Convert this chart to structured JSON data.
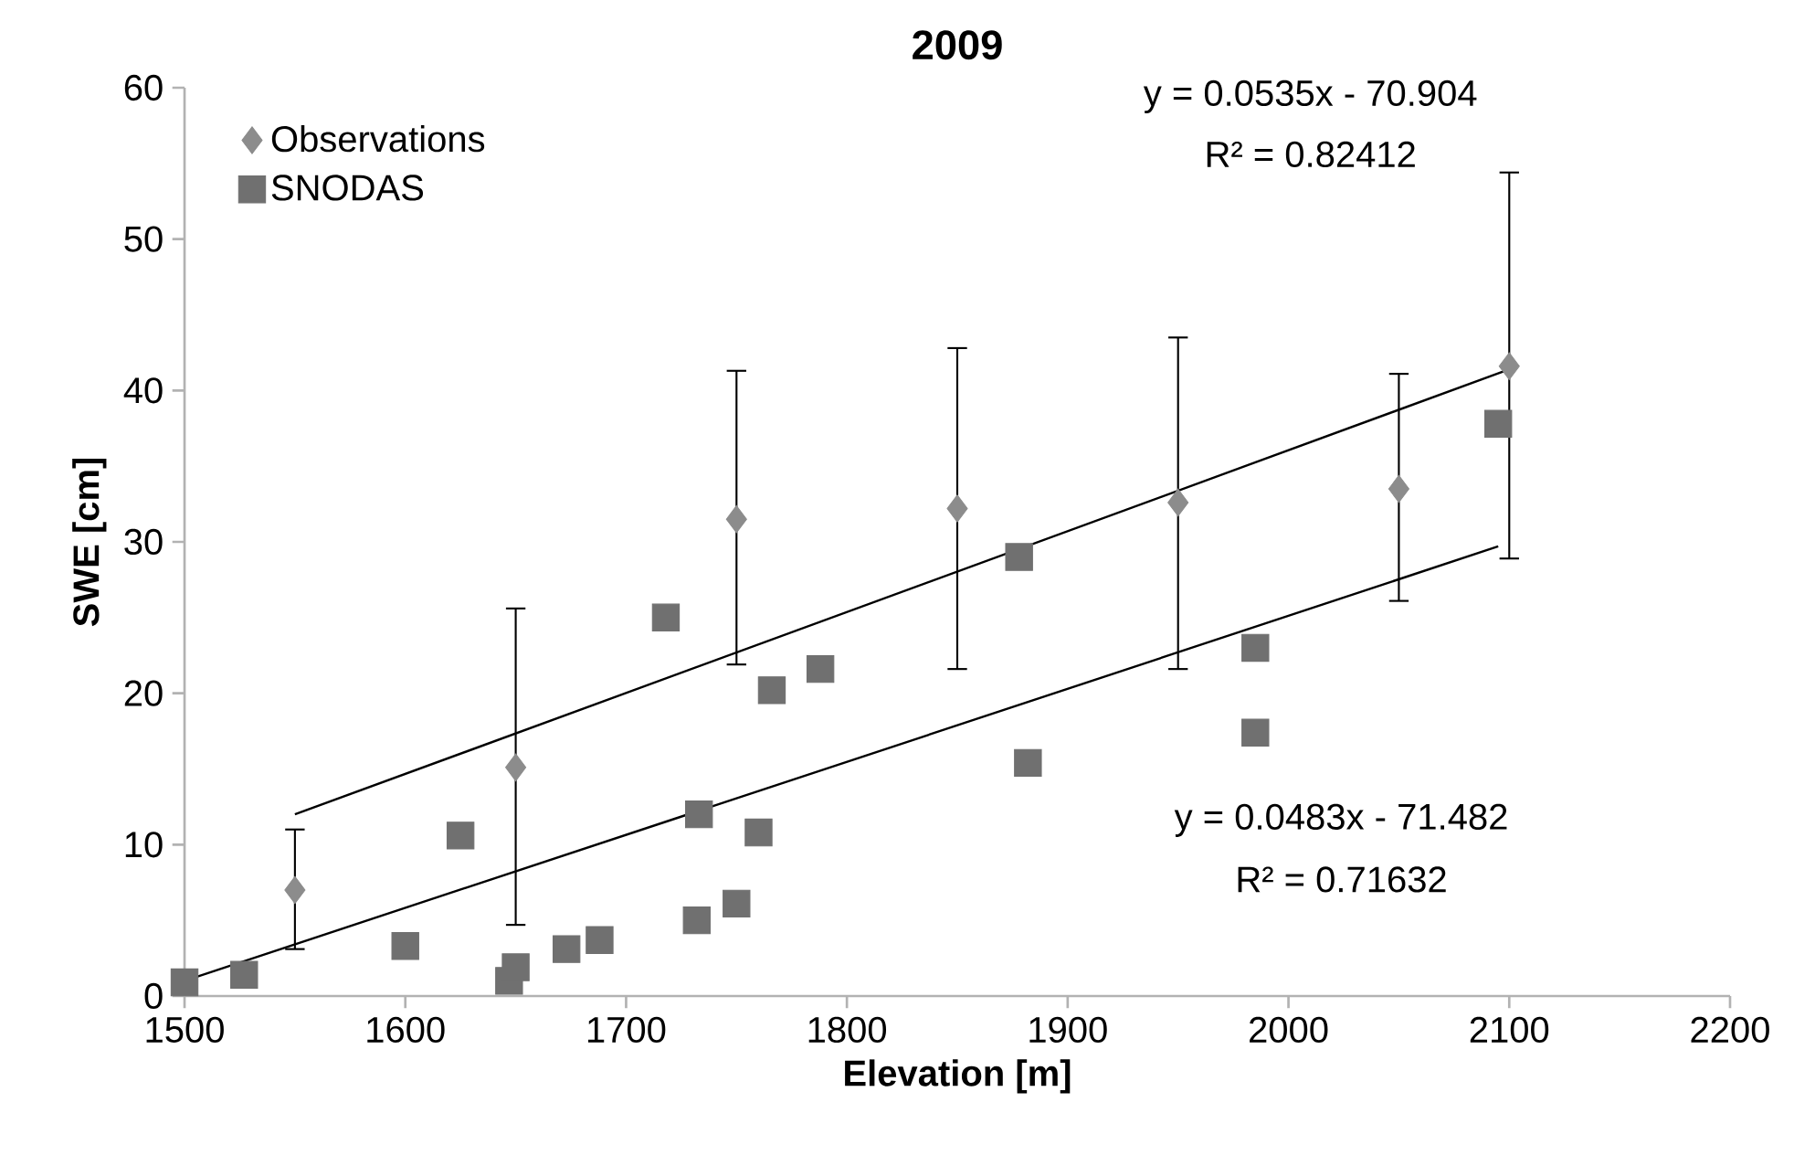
{
  "chart_data": {
    "type": "scatter",
    "title": "2009",
    "xlabel": "Elevation [m]",
    "ylabel": "SWE [cm]",
    "xlim": [
      1500,
      2200
    ],
    "xticks": [
      1500,
      1600,
      1700,
      1800,
      1900,
      2000,
      2100,
      2200
    ],
    "ylim": [
      0,
      60
    ],
    "yticks": [
      0,
      10,
      20,
      30,
      40,
      50,
      60
    ],
    "grid": false,
    "legend": "top left",
    "series": [
      {
        "name": "Observations",
        "marker": "diamond",
        "color": "#8c8c8c",
        "x": [
          1550,
          1650,
          1750,
          1850,
          1950,
          2050,
          2100
        ],
        "values": [
          7.0,
          15.1,
          31.5,
          32.2,
          32.6,
          33.5,
          41.6
        ],
        "errors": [
          [
            3.1,
            11.0
          ],
          [
            4.7,
            25.6
          ],
          [
            21.9,
            41.3
          ],
          [
            21.6,
            42.8
          ],
          [
            21.6,
            43.5
          ],
          [
            26.1,
            41.1
          ],
          [
            28.9,
            54.4
          ]
        ]
      },
      {
        "name": "SNODAS",
        "marker": "square",
        "color": "#707070",
        "x": [
          1500,
          1527,
          1600,
          1625,
          1647,
          1650,
          1673,
          1688,
          1718,
          1732,
          1733,
          1750,
          1760,
          1766,
          1788,
          1878,
          1882,
          1985,
          1985,
          2095
        ],
        "values": [
          0.9,
          1.4,
          3.3,
          10.6,
          1.0,
          1.9,
          3.1,
          3.7,
          25.0,
          5.0,
          12.0,
          6.1,
          10.8,
          20.2,
          21.6,
          29.0,
          15.4,
          23.0,
          17.4,
          37.8
        ]
      },
      {
        "type": "line",
        "marker": "none",
        "color": "#000000",
        "x": [
          1550,
          2100
        ],
        "values": [
          12.0,
          41.4
        ]
      },
      {
        "type": "line",
        "marker": "none",
        "color": "#000000",
        "x": [
          1500,
          2095
        ],
        "values": [
          1.0,
          29.7
        ]
      }
    ],
    "annotations": [
      "y = 0.0535x - 70.904",
      "R² = 0.82412",
      "y = 0.0483x - 71.482",
      "R² = 0.71632"
    ]
  }
}
